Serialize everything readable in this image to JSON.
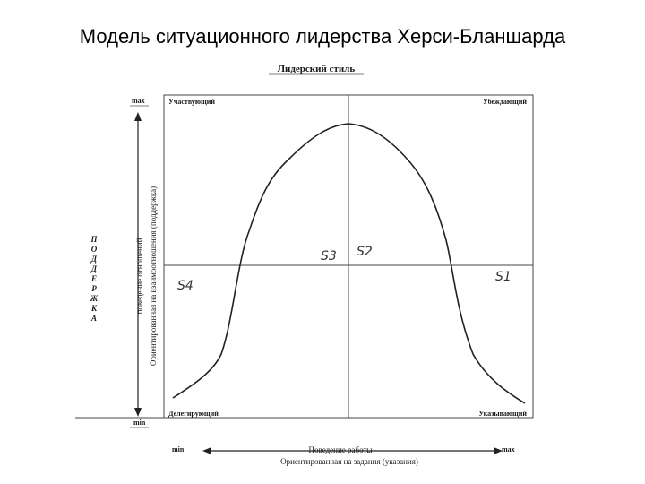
{
  "title": "Модель ситуационного лидерства Херси-Бланшарда",
  "diagram": {
    "heading": "Лидерский стиль",
    "quadrants": {
      "top_left": "Участвующий",
      "top_right": "Убеждающий",
      "bottom_left": "Делегирующий",
      "bottom_right": "Указывающий"
    },
    "styles": {
      "s1": "S1",
      "s2": "S2",
      "s3": "S3",
      "s4": "S4"
    },
    "y_axis": {
      "max": "max",
      "min": "min",
      "label_line1": "поведение отношений",
      "label_line2": "Ориентированная на взаимоотношения (поддержка)",
      "vertical_word": [
        "П",
        "О",
        "Д",
        "Д",
        "Е",
        "Р",
        "Ж",
        "К",
        "А"
      ]
    },
    "x_axis": {
      "min": "min",
      "max": "max",
      "label_line1": "Поведение работы",
      "label_line2": "Ориентированная на задания (указания)"
    }
  }
}
